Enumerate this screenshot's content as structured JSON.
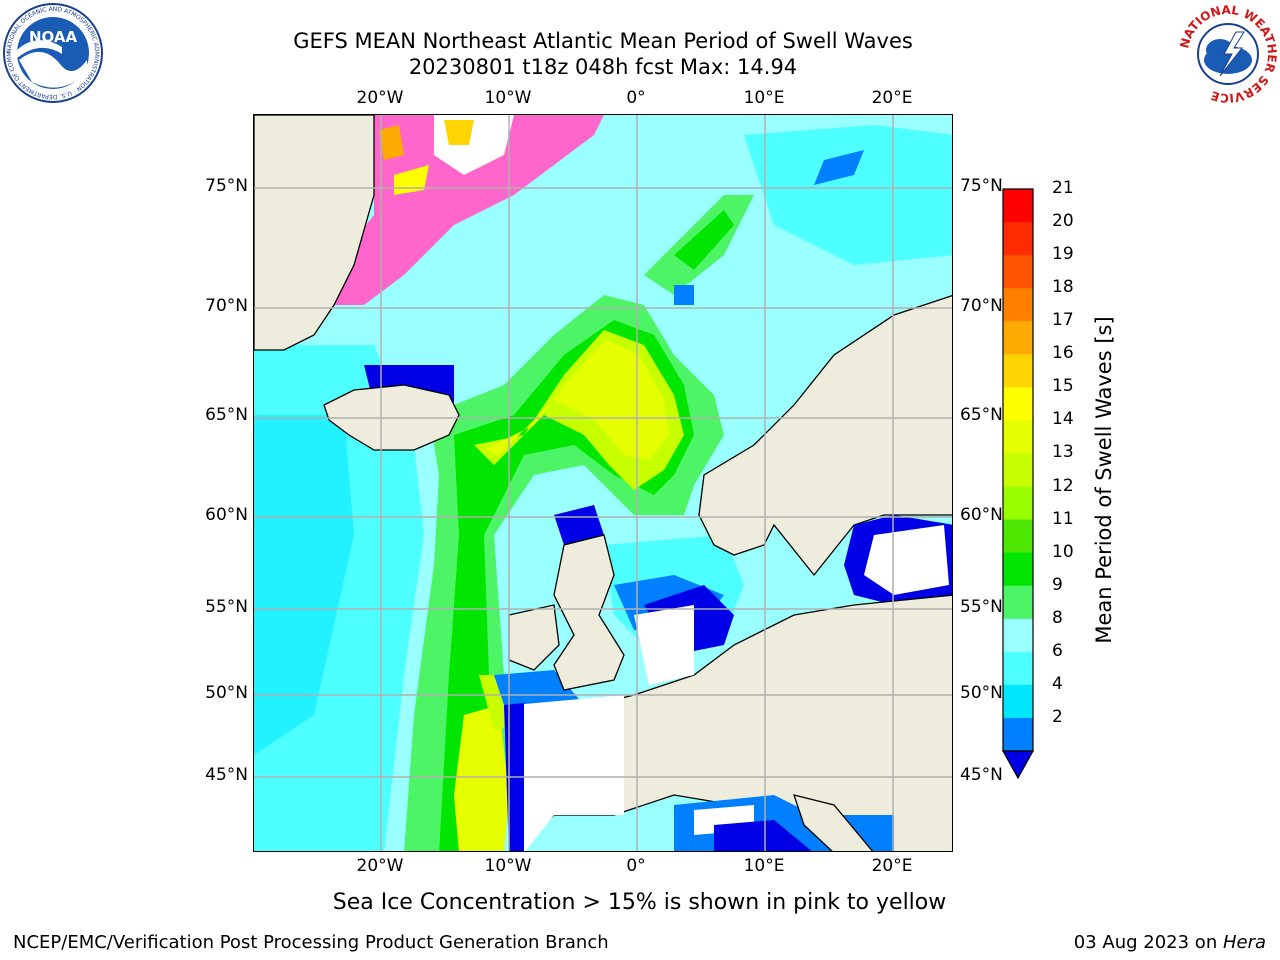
{
  "title_line1": "GEFS MEAN Northeast Atlantic Mean Period of Swell Waves",
  "title_line2": "20230801 t18z 048h fcst   Max: 14.94",
  "lon_ticks": [
    "20°W",
    "10°W",
    "0°",
    "10°E",
    "20°E"
  ],
  "lat_ticks": [
    "75°N",
    "70°N",
    "65°N",
    "60°N",
    "55°N",
    "50°N",
    "45°N"
  ],
  "colorbar": {
    "title": "Mean Period of Swell Waves [s]",
    "ticks": [
      "21",
      "20",
      "19",
      "18",
      "17",
      "16",
      "15",
      "14",
      "13",
      "12",
      "11",
      "10",
      "9",
      "8",
      "6",
      "4",
      "2"
    ],
    "colors": [
      "#ff0000",
      "#ff2a00",
      "#ff5500",
      "#ff7f00",
      "#ffaa00",
      "#ffd400",
      "#ffff00",
      "#e6ff00",
      "#c8ff00",
      "#99ff00",
      "#4de600",
      "#00e600",
      "#4df566",
      "#99ffff",
      "#4dffff",
      "#00e6ff",
      "#0080ff",
      "#0000e6"
    ]
  },
  "note": "Sea Ice Concentration > 15% is shown in pink to yellow",
  "footer_left": "NCEP/EMC/Verification Post Processing Product Generation Branch",
  "footer_date": "03 Aug 2023 on ",
  "footer_machine": "Hera",
  "logo_left": "NOAA",
  "logo_right": "NATIONAL WEATHER SERVICE",
  "logo_left_ring": "NATIONAL OCEANIC AND ATMOSPHERIC ADMINISTRATION · U.S. DEPARTMENT OF COMMERCE"
}
